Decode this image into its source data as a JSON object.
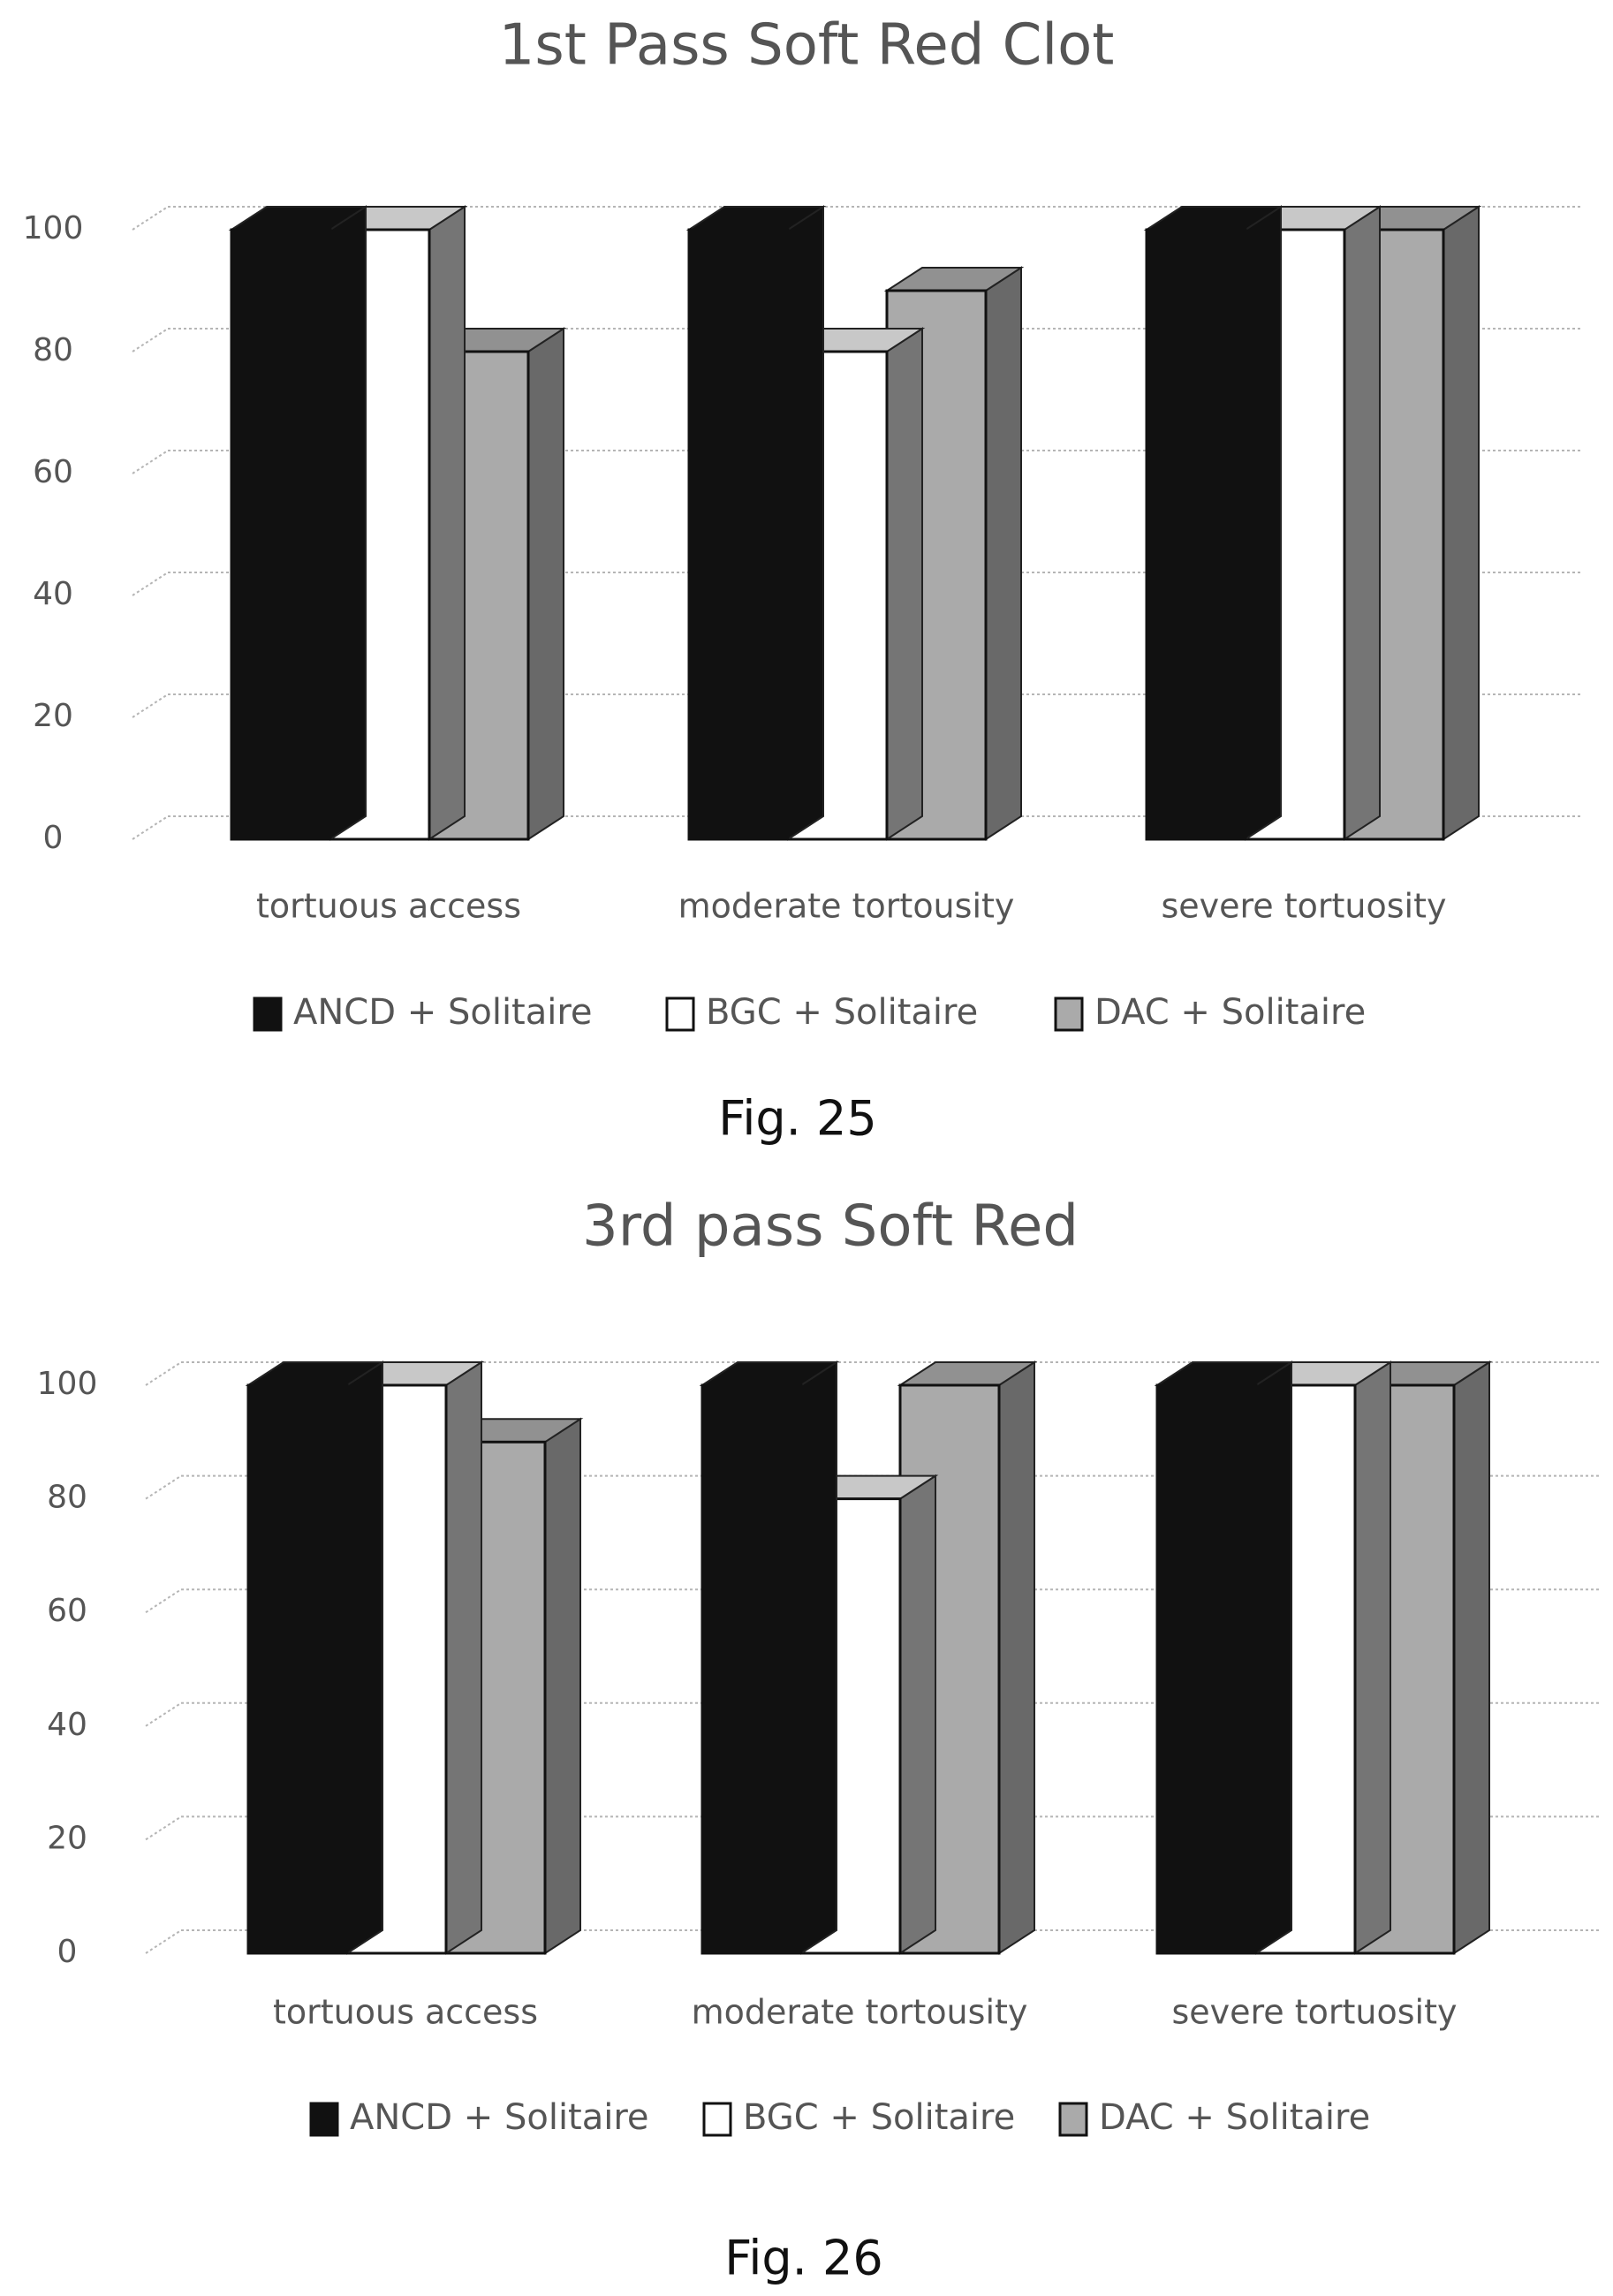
{
  "series_colors": {
    "ANCD + Solitaire": "#111111",
    "BGC + Solitaire": "#ffffff",
    "DAC + Solitaire": "#aaaaaa"
  },
  "chart_data": [
    {
      "type": "bar",
      "style": "3d-clustered-column",
      "title": "1st Pass Soft Red Clot",
      "categories": [
        "tortuous access",
        "moderate tortousity",
        "severe tortuosity"
      ],
      "series": [
        {
          "name": "ANCD + Solitaire",
          "values": [
            100,
            100,
            100
          ]
        },
        {
          "name": "BGC + Solitaire",
          "values": [
            100,
            80,
            100
          ]
        },
        {
          "name": "DAC + Solitaire",
          "values": [
            80,
            90,
            100
          ]
        }
      ],
      "yticks": [
        "0",
        "20",
        "40",
        "60",
        "80",
        "100"
      ],
      "ylim": [
        0,
        100
      ],
      "grid": true,
      "legend": "bottom",
      "caption": "Fig. 25"
    },
    {
      "type": "bar",
      "style": "3d-clustered-column",
      "title": "3rd pass Soft Red",
      "categories": [
        "tortuous access",
        "moderate tortousity",
        "severe tortuosity"
      ],
      "series": [
        {
          "name": "ANCD + Solitaire",
          "values": [
            100,
            100,
            100
          ]
        },
        {
          "name": "BGC + Solitaire",
          "values": [
            100,
            80,
            100
          ]
        },
        {
          "name": "DAC + Solitaire",
          "values": [
            90,
            100,
            100
          ]
        }
      ],
      "yticks": [
        "0",
        "20",
        "40",
        "60",
        "80",
        "100"
      ],
      "ylim": [
        0,
        100
      ],
      "grid": true,
      "legend": "bottom",
      "caption": "Fig. 26"
    }
  ]
}
